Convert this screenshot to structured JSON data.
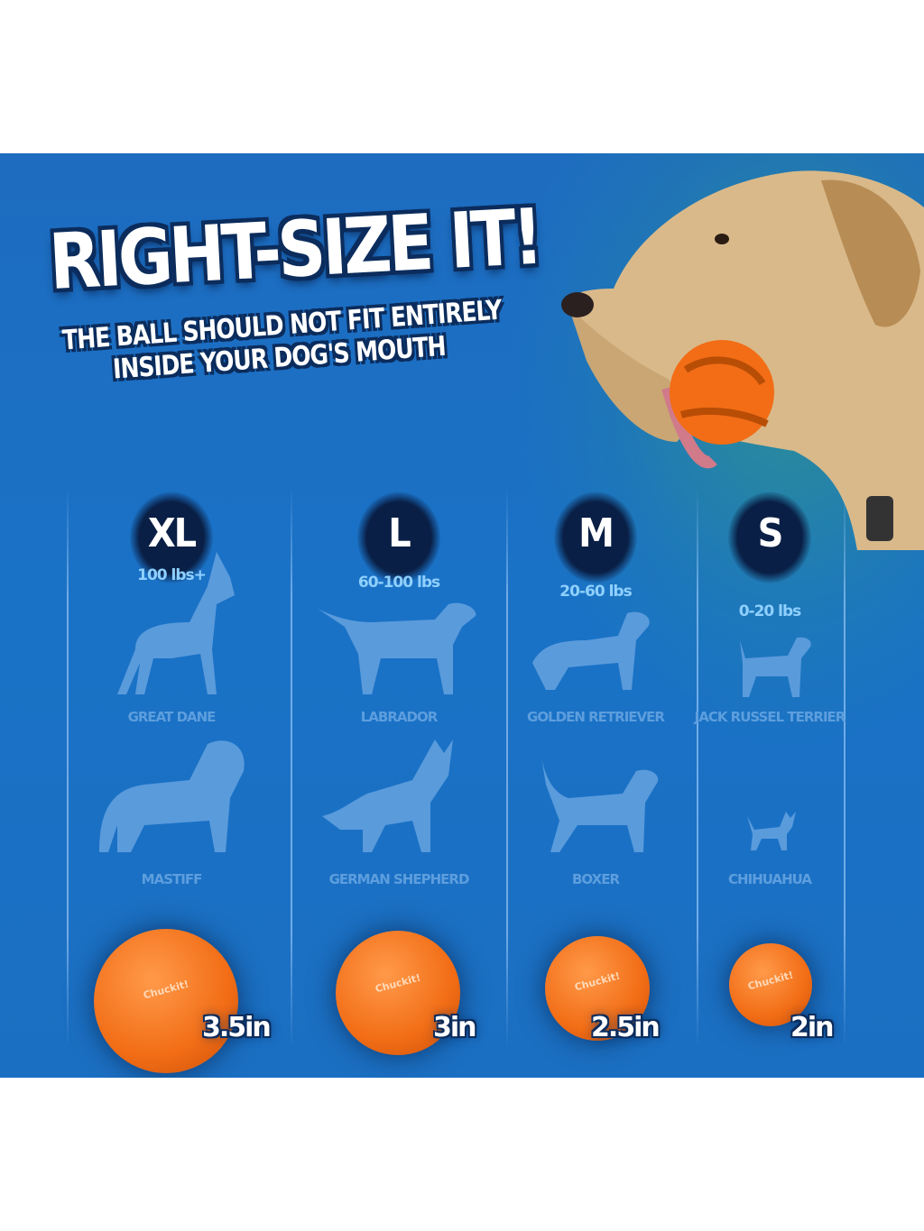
{
  "headline": "RIGHT-SIZE IT!",
  "subheadline_line1": "THE BALL SHOULD NOT FIT ENTIRELY",
  "subheadline_line2": "INSIDE YOUR DOG'S MOUTH",
  "brand_logo": "Chuckit!",
  "colors": {
    "background": "#1b6fc2",
    "badge": "#0a1f45",
    "ball": "#f26d16",
    "weight_text": "#8fd0ff",
    "breed_text": "#5d9ede"
  },
  "sizes": [
    {
      "label": "XL",
      "weight": "100 lbs+",
      "breeds": [
        "GREAT DANE",
        "MASTIFF"
      ],
      "ball_size": "3.5in"
    },
    {
      "label": "L",
      "weight": "60-100 lbs",
      "breeds": [
        "LABRADOR",
        "GERMAN SHEPHERD"
      ],
      "ball_size": "3in"
    },
    {
      "label": "M",
      "weight": "20-60 lbs",
      "breeds": [
        "GOLDEN RETRIEVER",
        "BOXER"
      ],
      "ball_size": "2.5in"
    },
    {
      "label": "S",
      "weight": "0-20 lbs",
      "breeds": [
        "JACK RUSSEL TERRIER",
        "CHIHUAHUA"
      ],
      "ball_size": "2in"
    }
  ]
}
